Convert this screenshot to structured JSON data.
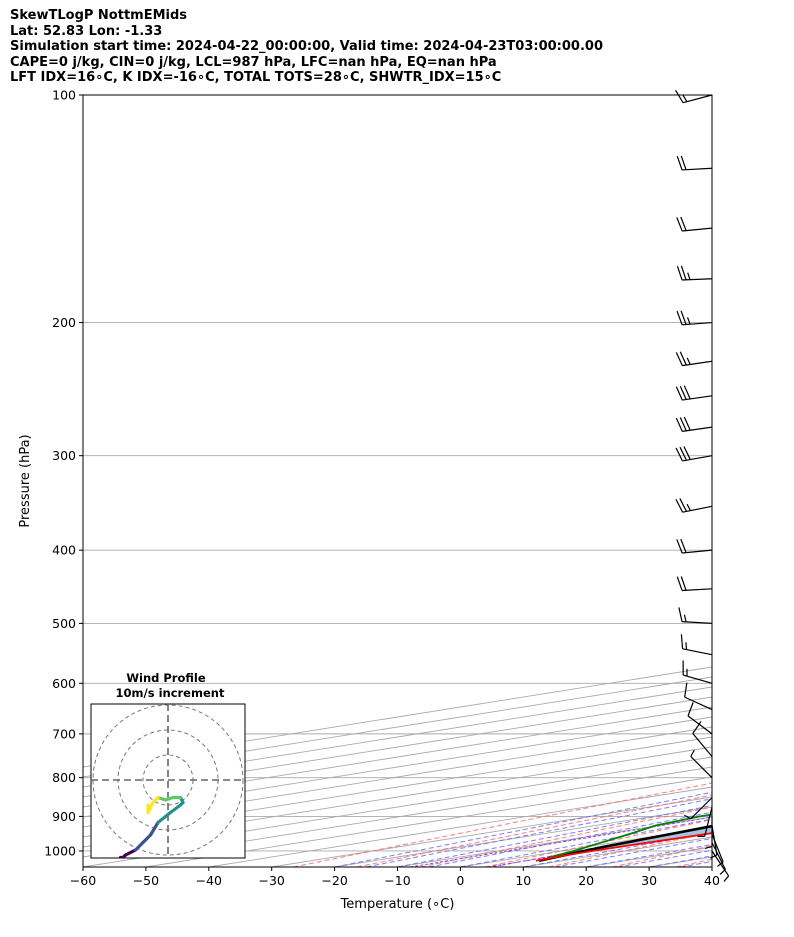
{
  "header": {
    "line1": "SkewTLogP NottmEMids",
    "line2": "Lat: 52.83   Lon: -1.33",
    "line3": "Simulation start time: 2024-04-22_00:00:00, Valid time: 2024-04-23T03:00:00.00",
    "line4": "CAPE=0 j/kg, CIN=0 j/kg, LCL=987 hPa, LFC=nan hPa, EQ=nan hPa",
    "line5": "LFT IDX=16∘C, K IDX=-16∘C, TOTAL TOTS=28∘C, SHWTR_IDX=15∘C"
  },
  "chart_data": {
    "type": "line",
    "subtype": "skew-T log-P diagram",
    "xlabel": "Temperature (∘C)",
    "ylabel": "Pressure (hPa)",
    "x_ticks": [
      "−60",
      "−50",
      "−40",
      "−30",
      "−20",
      "−10",
      "0",
      "10",
      "20",
      "30",
      "40"
    ],
    "x_tick_values": [
      -60,
      -50,
      -40,
      -30,
      -20,
      -10,
      0,
      10,
      20,
      30,
      40
    ],
    "y_ticks": [
      "100",
      "200",
      "300",
      "400",
      "500",
      "600",
      "700",
      "800",
      "900",
      "1000"
    ],
    "y_tick_values": [
      100,
      200,
      300,
      400,
      500,
      600,
      700,
      800,
      900,
      1000
    ],
    "xlim": [
      -60,
      40
    ],
    "ylim": [
      1050,
      100
    ],
    "y_scale": "log",
    "grid": true,
    "colors": {
      "temperature": "#ff0000",
      "dewpoint": "#008000",
      "parcel": "#000000",
      "cin_fill": "#a3c4dc",
      "dry_adiabats": "#ff6666",
      "moist_adiabats": "#6666ff",
      "mixing_ratio": "#9944cc",
      "isotherms": "#aaaaaa"
    },
    "series": [
      {
        "name": "Temperature",
        "pressure": [
          1030,
          1015,
          1000,
          985,
          950,
          925,
          900,
          875,
          850,
          800,
          750,
          700,
          650,
          600,
          550,
          500,
          450,
          400,
          350,
          300,
          275,
          250,
          230,
          215,
          200,
          180,
          160,
          140,
          125,
          115,
          108,
          100
        ],
        "temperature": [
          5.7,
          5.0,
          4.9,
          5.2,
          6.1,
          6.2,
          6.0,
          5.6,
          4.9,
          4.7,
          5.6,
          6.0,
          5.6,
          4.2,
          2.7,
          0.8,
          -1.5,
          -4.5,
          -8.0,
          -12.5,
          -15.5,
          -18.5,
          -21.5,
          -23.0,
          -22.5,
          -24.0,
          -28.0,
          -33.0,
          -39.0,
          -43.5,
          -47.0,
          -50.5
        ]
      },
      {
        "name": "Dewpoint",
        "pressure": [
          1020,
          1000,
          975,
          950,
          925,
          900,
          875,
          850,
          800,
          775,
          750,
          700,
          650,
          620,
          600,
          575,
          550,
          500,
          450,
          420,
          400,
          370,
          340,
          300,
          270,
          250,
          230,
          210,
          195,
          190,
          170,
          150,
          130,
          115,
          100
        ],
        "temperature": [
          4.5,
          2.0,
          -2.0,
          -6.0,
          -10.5,
          -12.5,
          -12.5,
          -13.5,
          -16.0,
          -19.5,
          -22.5,
          -17.5,
          -13.5,
          -11.0,
          -8.5,
          -9.0,
          -9.0,
          -10.0,
          -9.5,
          -11.0,
          -13.5,
          -17.0,
          -19.5,
          -18.5,
          -20.0,
          -21.0,
          -23.0,
          -23.0,
          -23.0,
          -24.5,
          -30.0,
          -35.0,
          -37.0,
          -39.0,
          -42.5
        ]
      },
      {
        "name": "Parcel",
        "pressure": [
          1030,
          987,
          950,
          900,
          850,
          800,
          700,
          600,
          500,
          400,
          300,
          250,
          200,
          150,
          120,
          100
        ],
        "temperature": [
          6.2,
          2.6,
          0.5,
          -2.5,
          -5.6,
          -9.0,
          -16.6,
          -26.0,
          -37.5,
          -52.0,
          -70.0,
          -80.5,
          -93.0,
          -106.5,
          -116.5,
          -124.0
        ]
      }
    ],
    "wind_barbs": {
      "pressure": [
        1000,
        975,
        950,
        925,
        900,
        875,
        850,
        800,
        750,
        700,
        650,
        600,
        550,
        500,
        450,
        400,
        350,
        300,
        275,
        250,
        225,
        200,
        175,
        150,
        125,
        100
      ],
      "u": [
        -4,
        -3,
        -2,
        -1,
        0,
        1,
        2,
        3,
        5,
        8,
        11,
        14,
        15,
        17,
        18,
        21,
        25,
        28,
        28,
        28,
        27,
        27,
        24,
        21,
        18,
        15
      ],
      "v": [
        6,
        6,
        5,
        6,
        5,
        4,
        2,
        -3,
        -6,
        -6,
        -5,
        -4,
        -3,
        -1,
        1,
        2,
        5,
        5,
        4,
        4,
        4,
        2,
        1,
        2,
        1,
        4
      ]
    },
    "inset": {
      "title": "Wind Profile",
      "subtitle": "10m/s increment",
      "type": "hodograph",
      "rings_ms": [
        10,
        20,
        30
      ],
      "colormap": [
        "#fde725",
        "#5ec962",
        "#21918c",
        "#3b528b",
        "#440154"
      ]
    }
  }
}
